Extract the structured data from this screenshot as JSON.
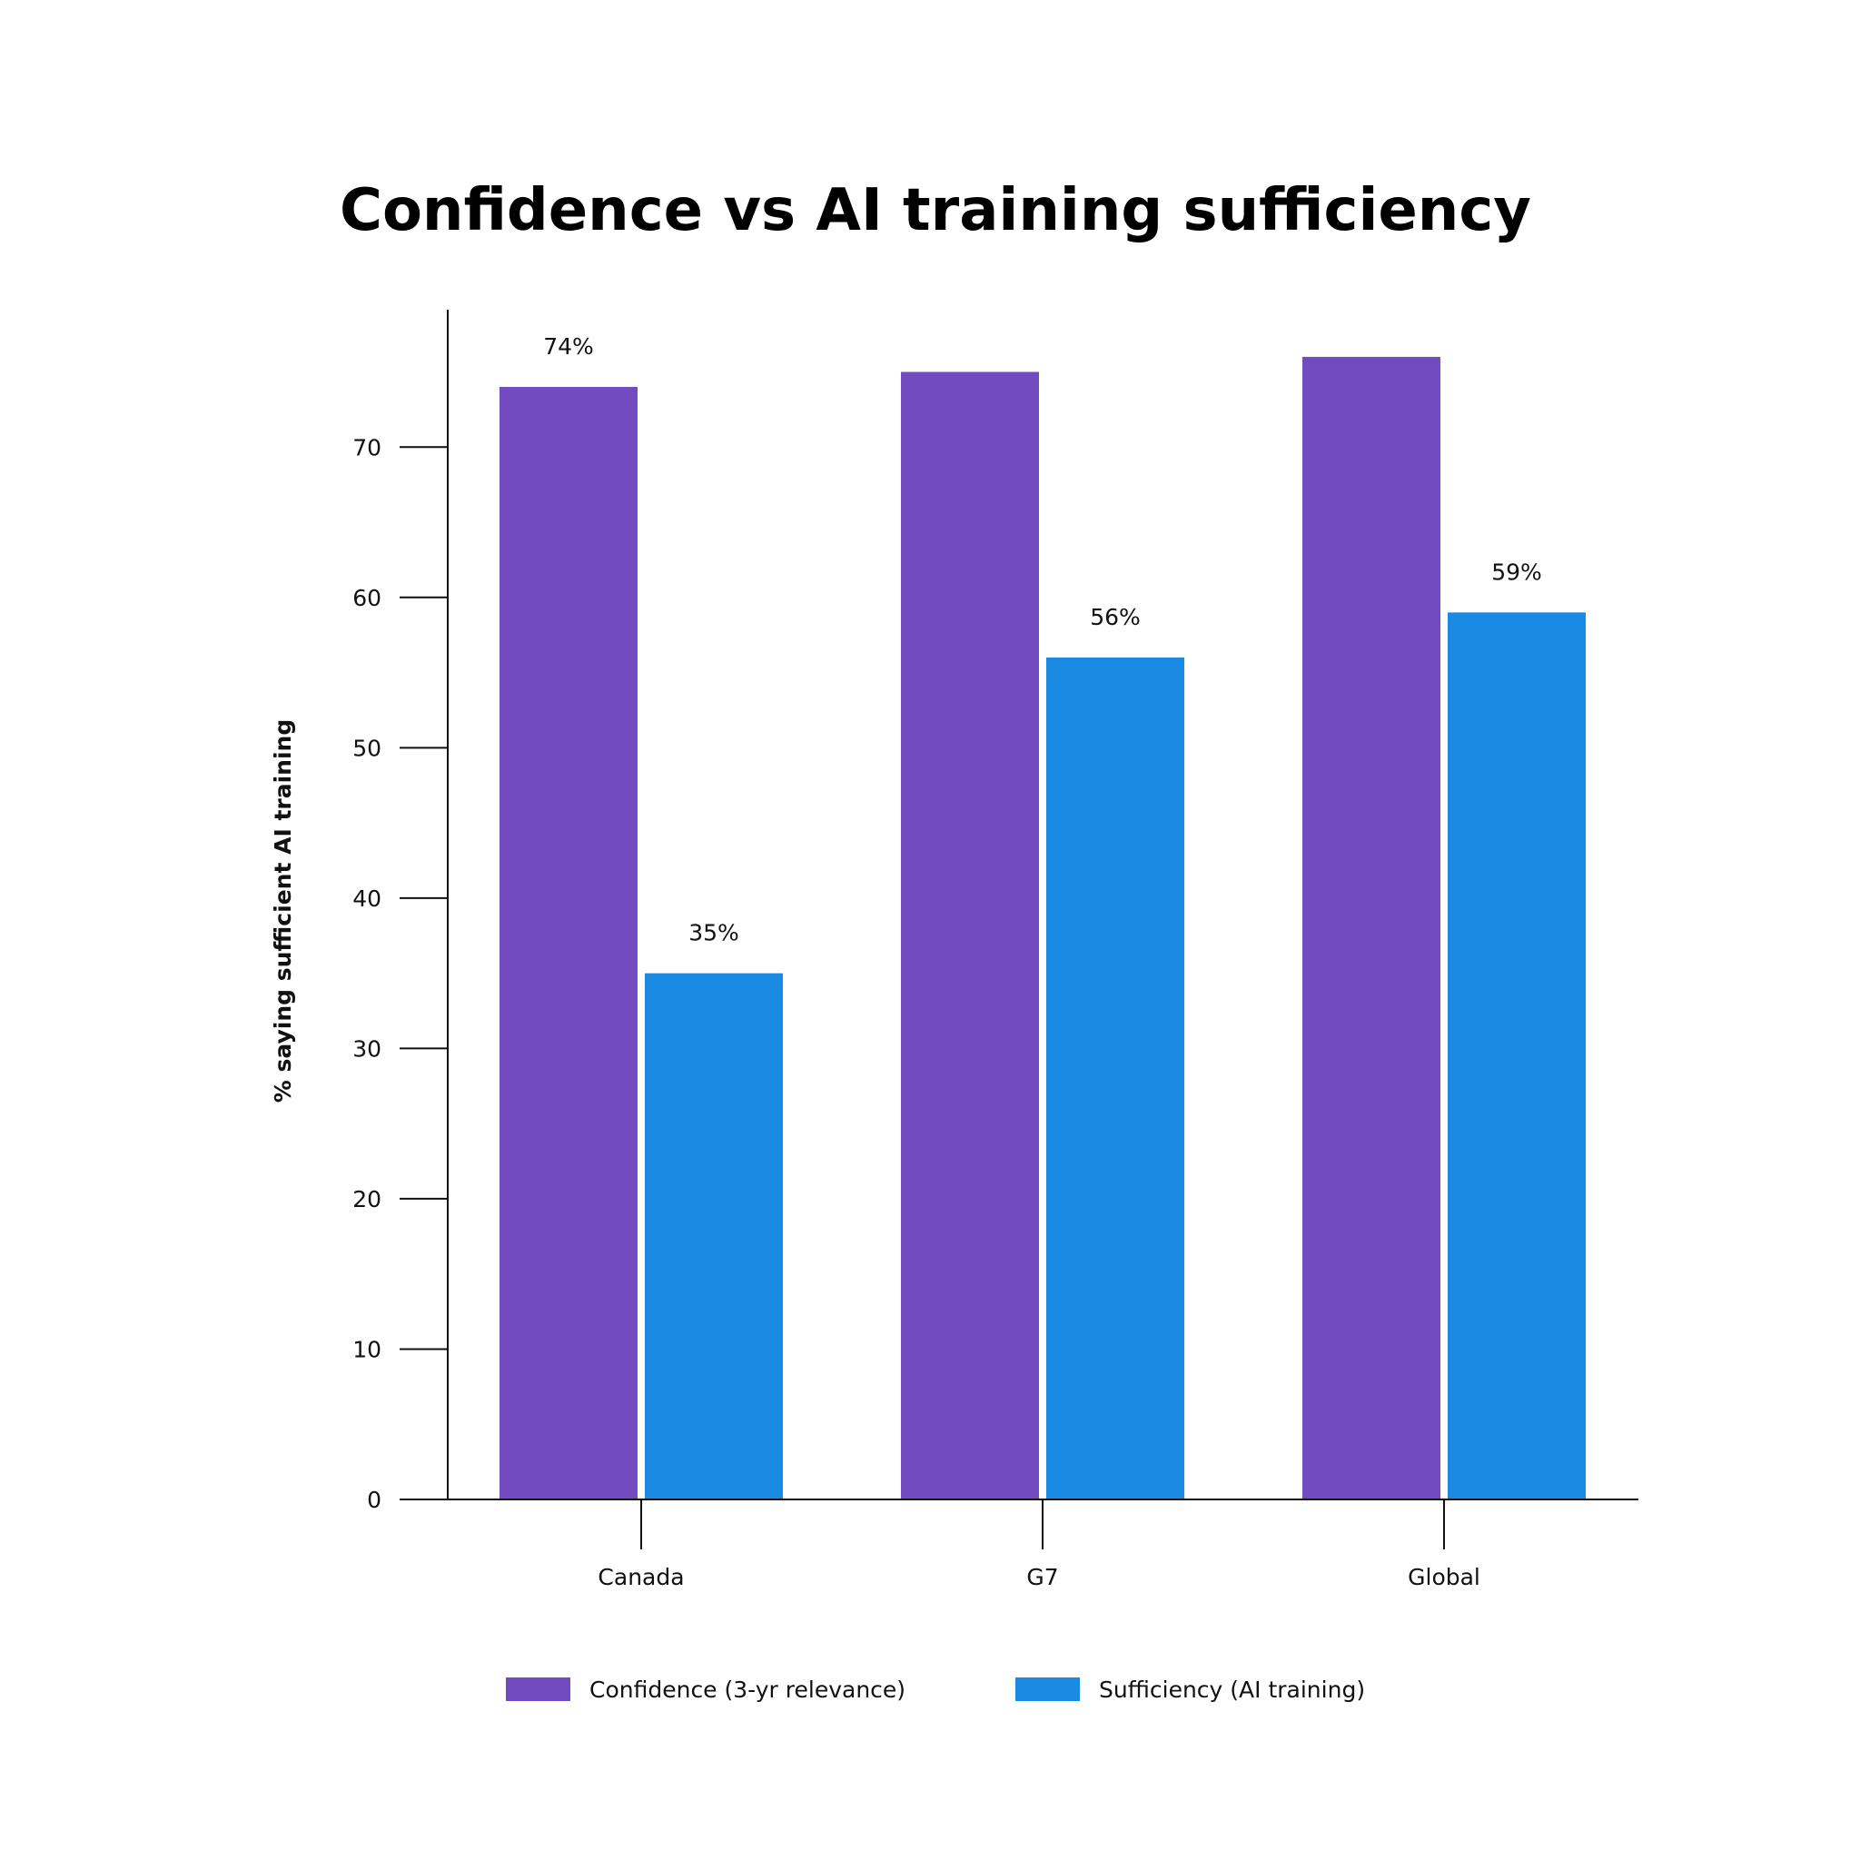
{
  "chart_data": {
    "type": "bar",
    "title": "Confidence vs AI training sufficiency",
    "xlabel": "",
    "ylabel": "% saying sufficient AI training",
    "categories": [
      "Canada",
      "G7",
      "Global"
    ],
    "series": [
      {
        "name": "Confidence (3-yr relevance)",
        "color": "#724bc0",
        "values": [
          74,
          75,
          76
        ],
        "labels": [
          "74%",
          null,
          null
        ]
      },
      {
        "name": "Sufficiency (AI training)",
        "color": "#1a8ae3",
        "values": [
          35,
          56,
          59
        ],
        "labels": [
          "35%",
          "56%",
          "59%"
        ]
      }
    ],
    "yticks": [
      0,
      10,
      20,
      30,
      40,
      50,
      60,
      70
    ],
    "ylim": [
      0,
      79.5
    ],
    "grid": false,
    "legend_position": "bottom"
  }
}
